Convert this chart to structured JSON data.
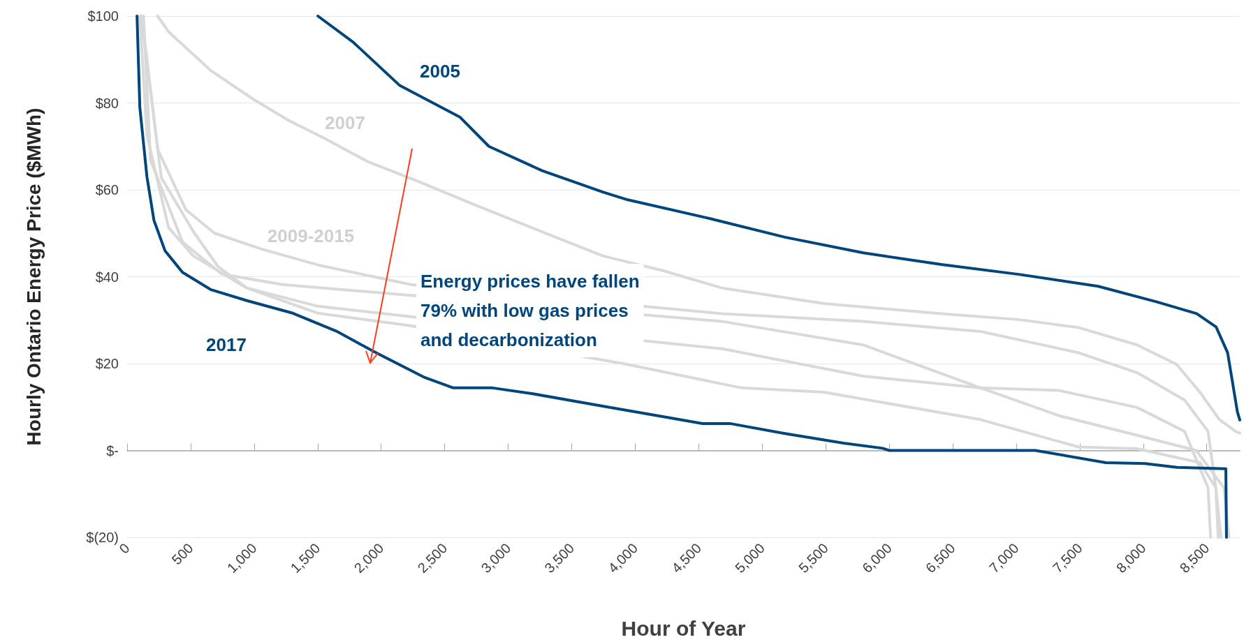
{
  "chart_data": {
    "type": "line",
    "xlabel": "Hour of Year",
    "ylabel": "Hourly Ontario Energy Price ($MWh)",
    "xlim": [
      0,
      8760
    ],
    "ylim": [
      -20,
      100
    ],
    "xticks": [
      0,
      500,
      {
        "value": 1000,
        "label": "1,000"
      },
      {
        "value": 1500,
        "label": "1,500"
      },
      {
        "value": 2000,
        "label": "2,000"
      },
      {
        "value": 2500,
        "label": "2,500"
      },
      {
        "value": 3000,
        "label": "3,000"
      },
      {
        "value": 3500,
        "label": "3,500"
      },
      {
        "value": 4000,
        "label": "4,000"
      },
      {
        "value": 4500,
        "label": "4,500"
      },
      {
        "value": 5000,
        "label": "5,000"
      },
      {
        "value": 5500,
        "label": "5,500"
      },
      {
        "value": 6000,
        "label": "6,000"
      },
      {
        "value": 6500,
        "label": "6,500"
      },
      {
        "value": 7000,
        "label": "7,000"
      },
      {
        "value": 7500,
        "label": "7,500"
      },
      {
        "value": 8000,
        "label": "8,000"
      },
      {
        "value": 8500,
        "label": "8,500"
      }
    ],
    "yticks": [
      {
        "value": -20,
        "label": "$(20)"
      },
      {
        "value": 0,
        "label": "$-"
      },
      {
        "value": 20,
        "label": "$20"
      },
      {
        "value": 40,
        "label": "$40"
      },
      {
        "value": 60,
        "label": "$60"
      },
      {
        "value": 80,
        "label": "$80"
      },
      {
        "value": 100,
        "label": "$100"
      }
    ],
    "grid": "y",
    "marker": "none",
    "line_style": "solid",
    "series": [
      {
        "color": "#d9d9d9",
        "x": [
          115,
          241,
          463,
          689,
          1054,
          1502,
          2233,
          4684,
          5794,
          6719,
          7490,
          7951,
          8325,
          8510,
          8571,
          8590
        ],
        "values": [
          100,
          69.3,
          55.4,
          50,
          46.4,
          42.7,
          38.2,
          31.5,
          29.7,
          27.4,
          22.5,
          17.9,
          11.6,
          4.4,
          -8.6,
          -20
        ],
        "name": "2009-2015"
      },
      {
        "color": "#d9d9d9",
        "x": [
          129,
          184,
          436,
          744,
          1222,
          2233,
          4684,
          5794,
          6719,
          7337,
          7951,
          8417,
          8635,
          8675
        ],
        "values": [
          100,
          66.8,
          48,
          40.6,
          38.2,
          35.7,
          29.7,
          24.3,
          14.4,
          8,
          3.5,
          0,
          -8.6,
          -20
        ]
      },
      {
        "color": "#d9d9d9",
        "x": [
          100,
          156,
          326,
          521,
          942,
          1502,
          2233,
          4684,
          5794,
          6719,
          7337,
          7951,
          8325,
          8510,
          8530
        ],
        "values": [
          100,
          72.6,
          51.3,
          44.8,
          37.4,
          33.2,
          30.8,
          23.4,
          17.1,
          14.4,
          13.8,
          9.9,
          4.4,
          -8.6,
          -20
        ]
      },
      {
        "color": "#d9d9d9",
        "x": [
          110,
          269,
          521,
          716,
          942,
          1502,
          2233,
          3941,
          4837,
          5486,
          6719,
          7490,
          7951,
          8446,
          8571,
          8612
        ],
        "values": [
          100,
          62.8,
          50.4,
          42.3,
          37.4,
          31.6,
          28.7,
          19.8,
          14.4,
          13.4,
          7.1,
          0.8,
          0.4,
          -2.8,
          -8.6,
          -20
        ]
      },
      {
        "color": "#d9d9d9",
        "x": [
          240,
          326,
          661,
          996,
          1276,
          1557,
          1894,
          2287,
          2765,
          3184,
          3744,
          4217,
          4684,
          5486,
          6410,
          7029,
          7490,
          7951,
          8263,
          8446,
          8600,
          8727,
          8760
        ],
        "values": [
          100,
          96.4,
          87.4,
          80.8,
          75.9,
          71.8,
          66.5,
          62,
          56.2,
          51.3,
          44.8,
          41.4,
          37.4,
          33.8,
          31.5,
          30.1,
          28.3,
          24.3,
          19.8,
          13.4,
          7.1,
          4.4,
          4
        ],
        "name": "2007"
      },
      {
        "color": "#00457c",
        "x": [
          1502,
          1783,
          2147,
          2622,
          2848,
          3268,
          3744,
          3941,
          4557,
          5178,
          5794,
          6410,
          7029,
          7645,
          8107,
          8420,
          8574,
          8664,
          8741,
          8760
        ],
        "values": [
          100,
          93.9,
          84,
          76.7,
          70,
          64.4,
          59.5,
          57.7,
          53.6,
          49.1,
          45.5,
          42.8,
          40.5,
          37.8,
          34.2,
          31.5,
          28.4,
          22.5,
          8.9,
          7
        ],
        "name": "2005"
      },
      {
        "color": "#00457c",
        "x": [
          78,
          100,
          156,
          211,
          298,
          436,
          661,
          942,
          1304,
          1645,
          1953,
          2343,
          2568,
          2876,
          3184,
          3744,
          4217,
          4530,
          4745,
          5178,
          5640,
          5948,
          6000,
          7150,
          7705,
          8013,
          8266,
          8650,
          8655
        ],
        "values": [
          100,
          79,
          63,
          53,
          46,
          41,
          37,
          34.5,
          31.6,
          27.5,
          22.6,
          16.8,
          14.4,
          14.4,
          13.1,
          10.2,
          7.8,
          6.2,
          6.2,
          3.9,
          1.7,
          0.5,
          0,
          0,
          -2.8,
          -3,
          -3.9,
          -4.2,
          -20
        ],
        "name": "2017"
      }
    ],
    "annotations": [
      "Energy prices have fallen\n79% with low gas prices\nand decarbonization"
    ]
  }
}
